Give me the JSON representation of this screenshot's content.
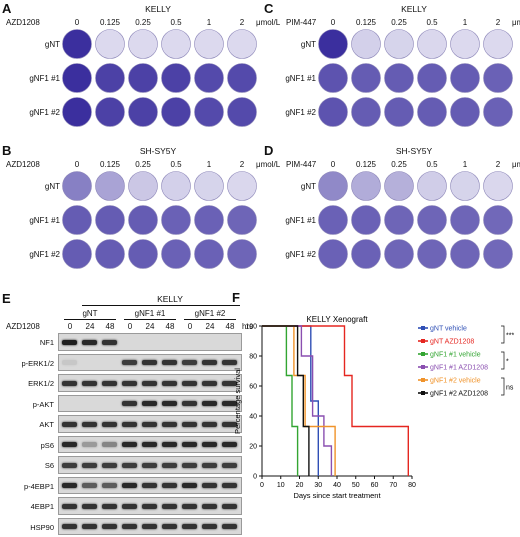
{
  "panels": {
    "A": {
      "letter": "A",
      "title": "KELLY",
      "drug_label": "AZD1208",
      "concentrations": [
        "0",
        "0.125",
        "0.25",
        "0.5",
        "1",
        "2"
      ],
      "unit": "μmol/L",
      "rows": [
        {
          "label": "gNT",
          "intensity": [
            1.0,
            0.05,
            0.05,
            0.05,
            0.05,
            0.05
          ]
        },
        {
          "label": "gNF1 #1",
          "intensity": [
            1.0,
            0.9,
            0.9,
            0.9,
            0.85,
            0.85
          ]
        },
        {
          "label": "gNF1 #2",
          "intensity": [
            1.0,
            0.9,
            0.9,
            0.9,
            0.85,
            0.85
          ]
        }
      ]
    },
    "B": {
      "letter": "B",
      "title": "SH-SY5Y",
      "drug_label": "AZD1208",
      "concentrations": [
        "0",
        "0.125",
        "0.25",
        "0.5",
        "1",
        "2"
      ],
      "unit": "μmol/L",
      "rows": [
        {
          "label": "gNT",
          "intensity": [
            0.55,
            0.35,
            0.15,
            0.1,
            0.08,
            0.06
          ]
        },
        {
          "label": "gNF1 #1",
          "intensity": [
            0.75,
            0.75,
            0.75,
            0.72,
            0.72,
            0.7
          ]
        },
        {
          "label": "gNF1 #2",
          "intensity": [
            0.75,
            0.75,
            0.75,
            0.72,
            0.72,
            0.7
          ]
        }
      ]
    },
    "C": {
      "letter": "C",
      "title": "KELLY",
      "drug_label": "PIM-447",
      "concentrations": [
        "0",
        "0.125",
        "0.25",
        "0.5",
        "1",
        "2"
      ],
      "unit": "μmol/L",
      "rows": [
        {
          "label": "gNT",
          "intensity": [
            1.0,
            0.1,
            0.08,
            0.06,
            0.05,
            0.05
          ]
        },
        {
          "label": "gNF1 #1",
          "intensity": [
            0.8,
            0.75,
            0.75,
            0.75,
            0.75,
            0.72
          ]
        },
        {
          "label": "gNF1 #2",
          "intensity": [
            0.8,
            0.75,
            0.75,
            0.75,
            0.75,
            0.72
          ]
        }
      ]
    },
    "D": {
      "letter": "D",
      "title": "SH-SY5Y",
      "drug_label": "PIM-447",
      "concentrations": [
        "0",
        "0.125",
        "0.25",
        "0.5",
        "1",
        "2"
      ],
      "unit": "μmol/L",
      "rows": [
        {
          "label": "gNT",
          "intensity": [
            0.5,
            0.3,
            0.28,
            0.12,
            0.08,
            0.06
          ]
        },
        {
          "label": "gNF1 #1",
          "intensity": [
            0.72,
            0.72,
            0.7,
            0.7,
            0.7,
            0.68
          ]
        },
        {
          "label": "gNF1 #2",
          "intensity": [
            0.72,
            0.72,
            0.7,
            0.7,
            0.7,
            0.68
          ]
        }
      ]
    },
    "E": {
      "letter": "E",
      "cell_line": "KELLY",
      "groups": [
        "gNT",
        "gNF1 #1",
        "gNF1 #2"
      ],
      "drug_label": "AZD1208",
      "timepoints": [
        "0",
        "24",
        "48",
        "0",
        "24",
        "48",
        "0",
        "24",
        "48"
      ],
      "time_unit": "hrs",
      "blots": [
        {
          "label": "NF1",
          "bands": [
            0.9,
            0.85,
            0.8,
            0,
            0,
            0,
            0,
            0,
            0
          ]
        },
        {
          "label": "p-ERK1/2",
          "bands": [
            0.08,
            0,
            0,
            0.75,
            0.8,
            0.8,
            0.75,
            0.8,
            0.8
          ]
        },
        {
          "label": "ERK1/2",
          "bands": [
            0.8,
            0.8,
            0.8,
            0.8,
            0.8,
            0.8,
            0.8,
            0.8,
            0.8
          ]
        },
        {
          "label": "p-AKT",
          "bands": [
            0,
            0,
            0,
            0.8,
            0.85,
            0.85,
            0.8,
            0.85,
            0.85
          ]
        },
        {
          "label": "AKT",
          "bands": [
            0.8,
            0.8,
            0.8,
            0.8,
            0.8,
            0.8,
            0.8,
            0.8,
            0.8
          ]
        },
        {
          "label": "pS6",
          "bands": [
            0.85,
            0.3,
            0.4,
            0.85,
            0.85,
            0.85,
            0.85,
            0.85,
            0.85
          ]
        },
        {
          "label": "S6",
          "bands": [
            0.75,
            0.75,
            0.75,
            0.75,
            0.75,
            0.75,
            0.75,
            0.75,
            0.75
          ]
        },
        {
          "label": "p-4EBP1",
          "bands": [
            0.85,
            0.6,
            0.6,
            0.85,
            0.8,
            0.8,
            0.85,
            0.8,
            0.8
          ]
        },
        {
          "label": "4EBP1",
          "bands": [
            0.8,
            0.8,
            0.8,
            0.8,
            0.8,
            0.8,
            0.8,
            0.8,
            0.8
          ]
        },
        {
          "label": "HSP90",
          "bands": [
            0.8,
            0.8,
            0.8,
            0.8,
            0.8,
            0.8,
            0.8,
            0.8,
            0.8
          ]
        }
      ]
    },
    "F": {
      "letter": "F",
      "sig_labels": [
        "***",
        "*",
        "ns"
      ]
    }
  },
  "colors": {
    "stain": "#3b2f9e",
    "stain_light": "#e4e2f2",
    "gNT_vehicle": "#2f4fb5",
    "gNT_AZD1208": "#e52620",
    "gNF1_1_vehicle": "#33a532",
    "gNF1_1_AZD1208": "#8a4fb0",
    "gNF1_2_vehicle": "#f0932a",
    "gNF1_2_AZD1208": "#111111"
  },
  "chart_data": {
    "type": "line",
    "title": "KELLY Xenograft",
    "xlabel": "Days since start treatment",
    "ylabel": "Percentage survival",
    "xlim": [
      0,
      80
    ],
    "ylim": [
      0,
      100
    ],
    "xticks": [
      0,
      10,
      20,
      30,
      40,
      50,
      60,
      70,
      80
    ],
    "yticks": [
      0,
      20,
      40,
      60,
      80,
      100
    ],
    "step": true,
    "series": [
      {
        "name": "gNT vehicle",
        "color": "#2f4fb5",
        "x": [
          0,
          26,
          26,
          30,
          30
        ],
        "y": [
          100,
          100,
          50,
          50,
          0
        ]
      },
      {
        "name": "gNT AZD1208",
        "color": "#e52620",
        "x": [
          0,
          44,
          44,
          48,
          48,
          78,
          78
        ],
        "y": [
          100,
          100,
          67,
          67,
          33,
          33,
          0
        ]
      },
      {
        "name": "gNF1 #1 vehicle",
        "color": "#33a532",
        "x": [
          0,
          13,
          13,
          16,
          16,
          19,
          19
        ],
        "y": [
          100,
          100,
          67,
          67,
          33,
          33,
          0
        ]
      },
      {
        "name": "gNF1 #1 AZD1208",
        "color": "#8a4fb0",
        "x": [
          0,
          21,
          21,
          27,
          27,
          33,
          33,
          37,
          37
        ],
        "y": [
          100,
          100,
          80,
          80,
          40,
          40,
          20,
          20,
          0
        ]
      },
      {
        "name": "gNF1 #2 vehicle",
        "color": "#f0932a",
        "x": [
          0,
          17,
          17,
          23,
          23,
          39,
          39
        ],
        "y": [
          100,
          100,
          67,
          67,
          33,
          33,
          0
        ]
      },
      {
        "name": "gNF1 #2 AZD1208",
        "color": "#111111",
        "x": [
          0,
          19,
          19,
          22,
          22,
          25,
          25
        ],
        "y": [
          100,
          100,
          67,
          67,
          33,
          33,
          0
        ]
      }
    ]
  }
}
